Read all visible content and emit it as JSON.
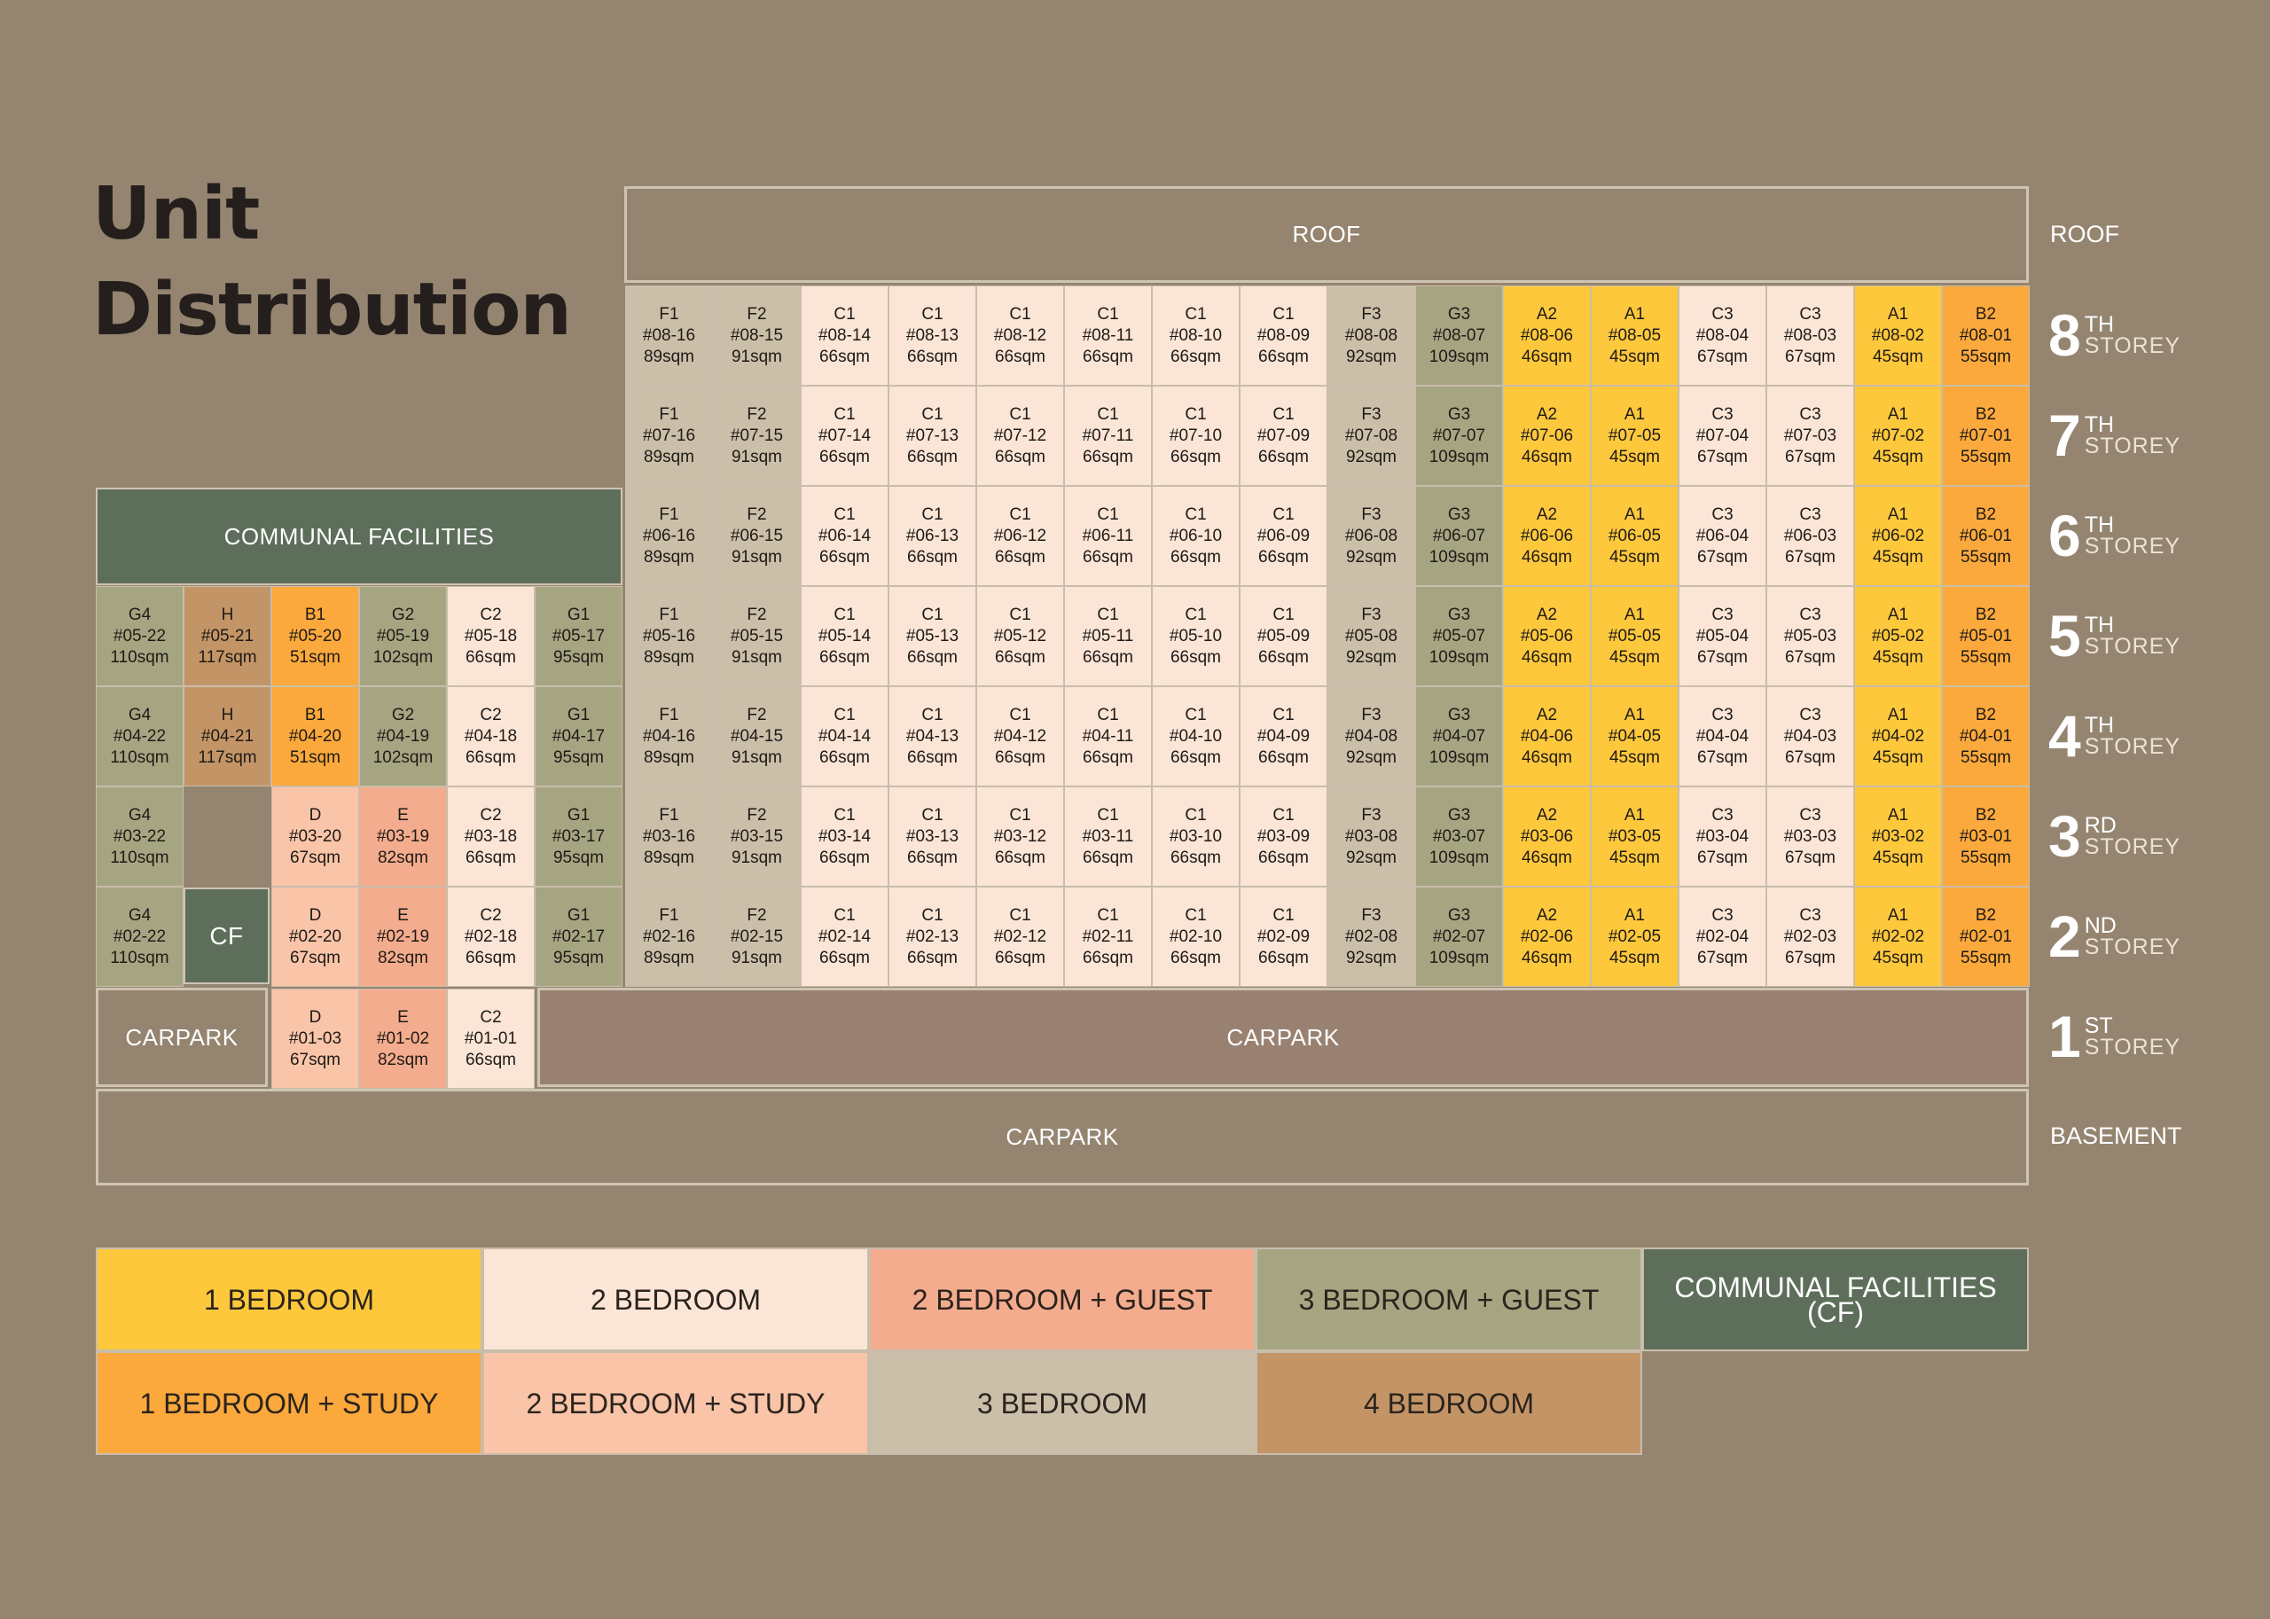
{
  "title": [
    "Unit",
    "Distribution"
  ],
  "roof_label": "ROOF",
  "roof_side_label": "ROOF",
  "basement_label": "BASEMENT",
  "communal_facilities_label": "COMMUNAL FACILITIES",
  "cf_label": "CF",
  "carpark_label": "CARPARK",
  "colors": {
    "background": "#958570",
    "1_bedroom": "#fdc83c",
    "1_bedroom_study": "#fba93c",
    "2_bedroom": "#fbe5d7",
    "2_bedroom_study": "#f9c4a8",
    "2_bedroom_guest": "#f3ac8d",
    "3_bedroom": "#cbbfa9",
    "3_bedroom_guest": "#a6a582",
    "4_bedroom": "#c39566",
    "communal_facilities": "#5d6e5b"
  },
  "floors": [
    {
      "num": "8",
      "sup": "TH",
      "storey": "STOREY"
    },
    {
      "num": "7",
      "sup": "TH",
      "storey": "STOREY"
    },
    {
      "num": "6",
      "sup": "TH",
      "storey": "STOREY"
    },
    {
      "num": "5",
      "sup": "TH",
      "storey": "STOREY"
    },
    {
      "num": "4",
      "sup": "TH",
      "storey": "STOREY"
    },
    {
      "num": "3",
      "sup": "RD",
      "storey": "STOREY"
    },
    {
      "num": "2",
      "sup": "ND",
      "storey": "STOREY"
    },
    {
      "num": "1",
      "sup": "ST",
      "storey": "STOREY"
    }
  ],
  "main_stack": [
    {
      "type": "F1",
      "suffix": "16",
      "size": "89sqm",
      "cat": "3_bedroom"
    },
    {
      "type": "F2",
      "suffix": "15",
      "size": "91sqm",
      "cat": "3_bedroom"
    },
    {
      "type": "C1",
      "suffix": "14",
      "size": "66sqm",
      "cat": "2_bedroom"
    },
    {
      "type": "C1",
      "suffix": "13",
      "size": "66sqm",
      "cat": "2_bedroom"
    },
    {
      "type": "C1",
      "suffix": "12",
      "size": "66sqm",
      "cat": "2_bedroom"
    },
    {
      "type": "C1",
      "suffix": "11",
      "size": "66sqm",
      "cat": "2_bedroom"
    },
    {
      "type": "C1",
      "suffix": "10",
      "size": "66sqm",
      "cat": "2_bedroom"
    },
    {
      "type": "C1",
      "suffix": "09",
      "size": "66sqm",
      "cat": "2_bedroom"
    },
    {
      "type": "F3",
      "suffix": "08",
      "size": "92sqm",
      "cat": "3_bedroom"
    },
    {
      "type": "G3",
      "suffix": "07",
      "size": "109sqm",
      "cat": "3_bedroom_guest"
    },
    {
      "type": "A2",
      "suffix": "06",
      "size": "46sqm",
      "cat": "1_bedroom"
    },
    {
      "type": "A1",
      "suffix": "05",
      "size": "45sqm",
      "cat": "1_bedroom"
    },
    {
      "type": "C3",
      "suffix": "04",
      "size": "67sqm",
      "cat": "2_bedroom"
    },
    {
      "type": "C3",
      "suffix": "03",
      "size": "67sqm",
      "cat": "2_bedroom"
    },
    {
      "type": "A1",
      "suffix": "02",
      "size": "45sqm",
      "cat": "1_bedroom"
    },
    {
      "type": "B2",
      "suffix": "01",
      "size": "55sqm",
      "cat": "1_bedroom_study"
    }
  ],
  "main_floors": [
    "08",
    "07",
    "06",
    "05",
    "04",
    "03",
    "02"
  ],
  "left_upper_stack": [
    {
      "type": "G4",
      "suffix": "22",
      "size": "110sqm",
      "cat": "3_bedroom_guest"
    },
    {
      "type": "H",
      "suffix": "21",
      "size": "117sqm",
      "cat": "4_bedroom"
    },
    {
      "type": "B1",
      "suffix": "20",
      "size": "51sqm",
      "cat": "1_bedroom_study"
    },
    {
      "type": "G2",
      "suffix": "19",
      "size": "102sqm",
      "cat": "3_bedroom_guest"
    },
    {
      "type": "C2",
      "suffix": "18",
      "size": "66sqm",
      "cat": "2_bedroom"
    },
    {
      "type": "G1",
      "suffix": "17",
      "size": "95sqm",
      "cat": "3_bedroom_guest"
    }
  ],
  "left_upper_floors": [
    "05",
    "04"
  ],
  "left_lower_stack": [
    {
      "type": "G4",
      "suffix": "22",
      "size": "110sqm",
      "cat": "3_bedroom_guest"
    },
    null,
    {
      "type": "D",
      "suffix": "20",
      "size": "67sqm",
      "cat": "2_bedroom_study"
    },
    {
      "type": "E",
      "suffix": "19",
      "size": "82sqm",
      "cat": "2_bedroom_guest"
    },
    {
      "type": "C2",
      "suffix": "18",
      "size": "66sqm",
      "cat": "2_bedroom"
    },
    {
      "type": "G1",
      "suffix": "17",
      "size": "95sqm",
      "cat": "3_bedroom_guest"
    }
  ],
  "left_lower_floors": [
    "03",
    "02"
  ],
  "first_storey_units": [
    {
      "type": "D",
      "unit": "#01-03",
      "size": "67sqm",
      "cat": "2_bedroom_study"
    },
    {
      "type": "E",
      "unit": "#01-02",
      "size": "82sqm",
      "cat": "2_bedroom_guest"
    },
    {
      "type": "C2",
      "unit": "#01-01",
      "size": "66sqm",
      "cat": "2_bedroom"
    }
  ],
  "legend": [
    {
      "label": "1 BEDROOM",
      "cat": "1_bedroom"
    },
    {
      "label": "2 BEDROOM",
      "cat": "2_bedroom"
    },
    {
      "label": "2 BEDROOM + GUEST",
      "cat": "2_bedroom_guest"
    },
    {
      "label": "3 BEDROOM + GUEST",
      "cat": "3_bedroom_guest"
    },
    {
      "label": "COMMUNAL FACILITIES (CF)",
      "cat": "communal_facilities"
    },
    {
      "label": "1 BEDROOM + STUDY",
      "cat": "1_bedroom_study"
    },
    {
      "label": "2 BEDROOM + STUDY",
      "cat": "2_bedroom_study"
    },
    {
      "label": "3 BEDROOM",
      "cat": "3_bedroom"
    },
    {
      "label": "4 BEDROOM",
      "cat": "4_bedroom"
    }
  ]
}
